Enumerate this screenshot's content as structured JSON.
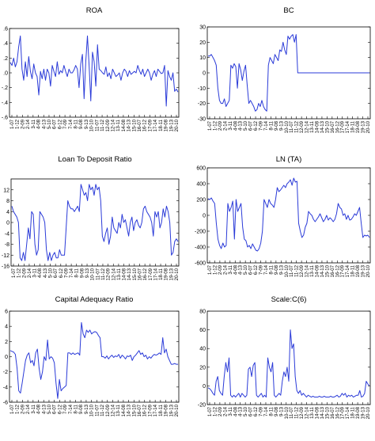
{
  "colors": {
    "series": "#2b3bd8",
    "axis": "#000000",
    "background": "#ffffff"
  },
  "x_tick_labels": [
    "1-07",
    "1-12",
    "2-09",
    "2-14",
    "3-11",
    "4-08",
    "4-13",
    "5-10",
    "6-07",
    "6-12",
    "7-09",
    "7-14",
    "8-11",
    "9-08",
    "9-13",
    "10-10",
    "11-07",
    "11-12",
    "12-09",
    "12-14",
    "13-11",
    "14-08",
    "14-13",
    "15-10",
    "16-07",
    "16-12",
    "17-09",
    "17-14",
    "18-11",
    "19-08",
    "19-13",
    "20-10"
  ],
  "chart_data": [
    {
      "type": "line",
      "title": "ROA",
      "ylim": [
        -0.6,
        0.6
      ],
      "yticks": [
        -0.6,
        -0.4,
        -0.2,
        0.0,
        0.2,
        0.4,
        0.6
      ],
      "ytick_labels": [
        "-.6",
        "-.4",
        "-.2",
        ".0",
        ".2",
        ".4",
        ".6"
      ],
      "x_categories_ref": "x_tick_labels",
      "series": [
        {
          "values": [
            0.14,
            0.1,
            0.2,
            0.08,
            0.15,
            0.35,
            0.5,
            0.05,
            -0.1,
            0.15,
            -0.05,
            0.22,
            0.02,
            -0.08,
            0.12,
            0.0,
            -0.05,
            -0.3,
            0.02,
            -0.08,
            0.05,
            -0.1,
            0.05,
            0.0,
            -0.18,
            0.1,
            0.02,
            -0.05,
            0.15,
            -0.02,
            0.03,
            0.0,
            0.1,
            0.02,
            -0.05,
            0.05,
            0.0,
            0.0,
            0.04,
            0.1,
            0.05,
            -0.2,
            0.12,
            0.25,
            -0.35,
            0.15,
            0.5,
            0.1,
            -0.38,
            0.28,
            0.15,
            -0.18,
            0.38,
            0.05,
            0.03,
            0.0,
            -0.02,
            0.08,
            -0.05,
            0.0,
            -0.08,
            0.05,
            0.0,
            -0.05,
            -0.03,
            0.0,
            -0.1,
            0.0,
            0.05,
            0.02,
            -0.05,
            0.03,
            -0.02,
            0.0,
            0.02,
            0.0,
            0.1,
            0.03,
            -0.02,
            0.05,
            -0.05,
            0.0,
            0.05,
            0.0,
            -0.1,
            -0.02,
            0.03,
            -0.05,
            0.05,
            0.02,
            -0.01,
            0.0,
            0.1,
            -0.45,
            0.03,
            -0.05,
            -0.1,
            0.0,
            -0.25,
            -0.22,
            -0.26
          ]
        }
      ]
    },
    {
      "type": "line",
      "title": "BC",
      "ylim": [
        -30,
        30
      ],
      "yticks": [
        -30,
        -20,
        -10,
        0,
        10,
        20,
        30
      ],
      "ytick_labels": [
        "-30",
        "-20",
        "-10",
        "0",
        "10",
        "20",
        "30"
      ],
      "x_categories_ref": "x_tick_labels",
      "series": [
        {
          "values": [
            11,
            11,
            12,
            10,
            8,
            5,
            -10,
            -18,
            -20,
            -20,
            -17,
            -22,
            -20,
            -18,
            5,
            3,
            6,
            4,
            -10,
            6,
            2,
            -5,
            1,
            5,
            -8,
            -20,
            -18,
            -20,
            -22,
            -25,
            -24,
            -20,
            -22,
            -18,
            -22,
            -24,
            -25,
            5,
            10,
            8,
            6,
            12,
            10,
            8,
            15,
            14,
            20,
            15,
            12,
            24,
            22,
            24,
            25,
            20,
            25,
            0,
            0,
            0,
            0,
            0,
            0,
            0,
            0,
            0,
            0,
            0,
            0,
            0,
            0,
            0,
            0,
            0,
            0,
            0,
            0,
            0,
            0,
            0,
            0,
            0,
            0,
            0,
            0,
            0,
            0,
            0,
            0,
            0,
            0,
            0,
            0,
            0,
            0,
            0,
            0,
            0,
            0,
            0,
            0,
            0
          ]
        }
      ]
    },
    {
      "type": "line",
      "title": "Loan To Deposit Ratio",
      "ylim": [
        -16,
        16
      ],
      "yticks": [
        -16,
        -12,
        -8,
        -4,
        0,
        4,
        8,
        12
      ],
      "ytick_labels": [
        "-16",
        "-12",
        "-8",
        "-4",
        "0",
        "4",
        "8",
        "12"
      ],
      "x_categories_ref": "x_tick_labels",
      "series": [
        {
          "values": [
            6,
            4,
            3,
            2,
            0,
            -13,
            -14,
            -11,
            -14,
            -8,
            -2,
            -6,
            4,
            3,
            -8,
            -12,
            -10,
            4,
            3,
            2,
            0,
            -10,
            -14,
            -11,
            -14,
            -12,
            -11,
            -13,
            -13,
            -10,
            -12,
            -12,
            -12,
            -2,
            8,
            6,
            5,
            5,
            4,
            5,
            6,
            4,
            14,
            12,
            10,
            11,
            8,
            14,
            12,
            13,
            10,
            14,
            12,
            13,
            8,
            -5,
            -7,
            -4,
            -2,
            -8,
            -5,
            2,
            -2,
            -3,
            -4,
            0,
            -2,
            3,
            0,
            1,
            -2,
            -5,
            0,
            2,
            -3,
            0,
            1,
            -1,
            -2,
            0,
            5,
            6,
            4,
            3,
            2,
            0,
            -5,
            4,
            2,
            4,
            -2,
            0,
            5,
            2,
            6,
            4,
            0,
            -12,
            -11,
            -7,
            -6,
            -7
          ]
        }
      ]
    },
    {
      "type": "line",
      "title": "LN (TA)",
      "ylim": [
        -600,
        600
      ],
      "yticks": [
        -600,
        -400,
        -200,
        0,
        200,
        400,
        600
      ],
      "ytick_labels": [
        "-600",
        "-400",
        "-200",
        "0",
        "200",
        "400",
        "600"
      ],
      "x_categories_ref": "x_tick_labels",
      "series": [
        {
          "values": [
            210,
            200,
            220,
            180,
            150,
            -100,
            -300,
            -380,
            -420,
            -350,
            -400,
            -380,
            150,
            50,
            100,
            180,
            -300,
            200,
            50,
            100,
            150,
            -150,
            -300,
            -320,
            -400,
            -380,
            -420,
            -360,
            -400,
            -440,
            -450,
            -420,
            -350,
            -200,
            200,
            150,
            100,
            200,
            150,
            130,
            100,
            200,
            350,
            300,
            320,
            350,
            380,
            350,
            400,
            420,
            450,
            380,
            470,
            420,
            430,
            -100,
            -200,
            -280,
            -250,
            -150,
            -100,
            50,
            20,
            0,
            -50,
            -80,
            -50,
            -20,
            20,
            -30,
            -80,
            -50,
            0,
            -60,
            -30,
            -50,
            -80,
            -50,
            20,
            150,
            100,
            80,
            0,
            20,
            -50,
            0,
            -60,
            -50,
            -20,
            20,
            0,
            50,
            100,
            -100,
            -280,
            -250,
            -260,
            -250,
            -280
          ]
        }
      ]
    },
    {
      "type": "line",
      "title": "Capital Adequacy Ratio",
      "ylim": [
        -6,
        6
      ],
      "yticks": [
        -6,
        -4,
        -2,
        0,
        2,
        4,
        6
      ],
      "ytick_labels": [
        "-6",
        "-4",
        "-2",
        "0",
        "2",
        "4",
        "6"
      ],
      "x_categories_ref": "x_tick_labels",
      "series": [
        {
          "values": [
            0.8,
            0.7,
            0.6,
            0.3,
            -1.5,
            -4.5,
            -4.8,
            -3.5,
            -2.0,
            -0.5,
            0.2,
            0.5,
            -0.8,
            -0.5,
            -1.2,
            0.5,
            1.0,
            -1.5,
            -3.0,
            -2.0,
            0.0,
            -0.5,
            2.2,
            -0.3,
            0.0,
            -0.2,
            -0.8,
            -3.5,
            -5.5,
            -3.0,
            -4.5,
            -4.2,
            -4.0,
            -3.8,
            0.5,
            0.5,
            0.3,
            0.5,
            0.3,
            0.4,
            0.5,
            0.2,
            4.5,
            3.0,
            2.5,
            3.5,
            3.2,
            3.5,
            3.0,
            3.2,
            3.3,
            3.2,
            2.8,
            2.5,
            0.0,
            0.0,
            -0.2,
            0.1,
            -0.3,
            0.0,
            0.2,
            -0.1,
            0.1,
            0.0,
            0.3,
            -0.2,
            0.2,
            0.0,
            -0.3,
            0.1,
            0.0,
            0.2,
            -0.5,
            0.0,
            0.2,
            0.5,
            0.8,
            0.3,
            0.5,
            0.0,
            0.2,
            -0.3,
            0.0,
            -0.2,
            0.1,
            0.3,
            0.2,
            0.3,
            0.5,
            0.3,
            2.5,
            0.5,
            1.0,
            0.0,
            -0.5,
            -1.0,
            -1.0,
            -0.9,
            -1.0,
            -1.0
          ]
        }
      ]
    },
    {
      "type": "line",
      "title": "Scale:C(6)",
      "ylim": [
        -20,
        80
      ],
      "yticks": [
        -20,
        0,
        20,
        40,
        60,
        80
      ],
      "ytick_labels": [
        "-20",
        "0",
        "20",
        "40",
        "60",
        "80"
      ],
      "x_categories_ref": "x_tick_labels",
      "series": [
        {
          "values": [
            -2,
            -3,
            -5,
            -8,
            -10,
            5,
            10,
            -5,
            -8,
            -10,
            10,
            25,
            15,
            30,
            -10,
            -12,
            -10,
            -12,
            -10,
            -8,
            -12,
            -8,
            -10,
            -12,
            -10,
            18,
            20,
            10,
            22,
            25,
            -10,
            -12,
            -10,
            -8,
            -12,
            -10,
            -12,
            30,
            20,
            15,
            25,
            -10,
            -12,
            -10,
            -8,
            -10,
            5,
            15,
            10,
            20,
            5,
            60,
            40,
            45,
            10,
            -5,
            -8,
            -5,
            -10,
            -8,
            -10,
            -12,
            -10,
            -11,
            -12,
            -11,
            -12,
            -12,
            -12,
            -11,
            -12,
            -12,
            -11,
            -12,
            -12,
            -12,
            -11,
            -12,
            -12,
            -11,
            -10,
            -12,
            -11,
            -8,
            -10,
            -8,
            -12,
            -10,
            -11,
            -10,
            -12,
            -11,
            -10,
            -10,
            -5,
            -12,
            -11,
            -8,
            5,
            2,
            0
          ]
        }
      ]
    }
  ]
}
